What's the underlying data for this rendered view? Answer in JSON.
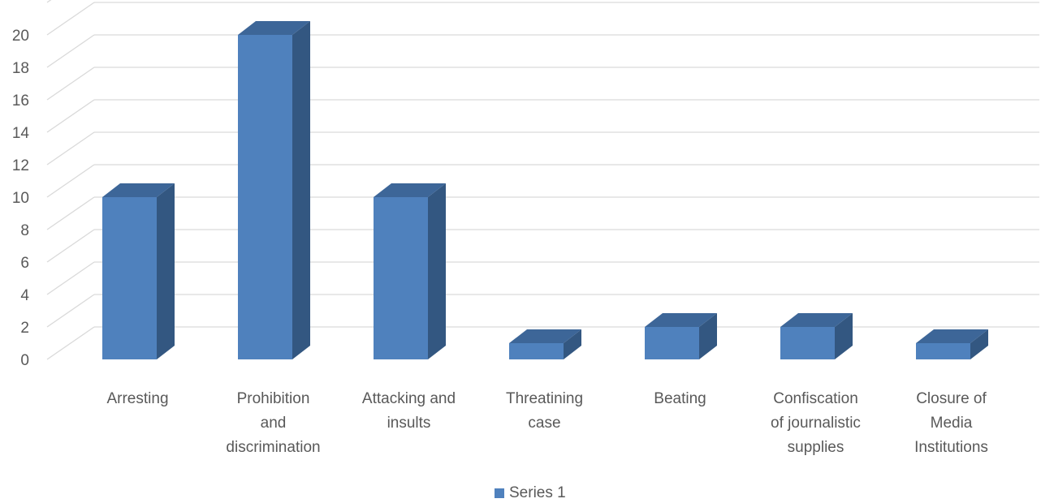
{
  "chart_data": {
    "type": "bar",
    "title": "",
    "xlabel": "",
    "ylabel": "",
    "categories": [
      "Arresting",
      "Prohibition and discrimination",
      "Attacking and insults",
      "Threatining case",
      "Beating",
      "Confiscation of journalistic supplies",
      "Closure of Media Institutions"
    ],
    "category_lines": [
      [
        "Arresting"
      ],
      [
        "Prohibition",
        "and",
        "discrimination"
      ],
      [
        "Attacking and",
        "insults"
      ],
      [
        "Threatining",
        "case"
      ],
      [
        "Beating"
      ],
      [
        "Confiscation",
        "of journalistic",
        "supplies"
      ],
      [
        "Closure of",
        "Media",
        "Institutions"
      ]
    ],
    "series": [
      {
        "name": "Series 1",
        "values": [
          10,
          20,
          10,
          1,
          2,
          2,
          1
        ],
        "color": "#4f81bd",
        "side_color": "#335781",
        "top_color": "#3d6698"
      }
    ],
    "ylim": [
      0,
      20
    ],
    "ticks": [
      0,
      2,
      4,
      6,
      8,
      10,
      12,
      14,
      16,
      18,
      20
    ],
    "grid": true,
    "legend": "bottom",
    "three_d": true
  }
}
